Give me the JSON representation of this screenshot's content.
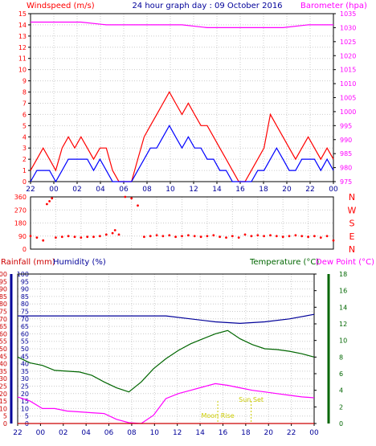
{
  "colors": {
    "wind_speed": "#ff0000",
    "wind_gust": "#ff0000",
    "wind_avg": "#0000ff",
    "barometer": "#ff00ff",
    "direction": "#ff0000",
    "rainfall": "#cc0000",
    "humidity": "#000099",
    "temperature": "#006600",
    "dew_point": "#ff00ff",
    "sun": "#cccc00",
    "grid": "#cccccc",
    "frame": "#000000"
  },
  "chart_data": [
    {
      "type": "line",
      "title": "24 hour graph day : 09 October 2016",
      "ylabel": "Windspeed (m/s)",
      "y2label": "Barometer (hpa)",
      "ylim": [
        0,
        15
      ],
      "y2lim": [
        975,
        1035
      ],
      "yticks": [
        0,
        1,
        2,
        3,
        4,
        5,
        6,
        7,
        8,
        9,
        10,
        11,
        12,
        13,
        14,
        15
      ],
      "y2ticks": [
        975,
        980,
        985,
        990,
        995,
        1000,
        1005,
        1010,
        1015,
        1020,
        1025,
        1030,
        1035
      ],
      "xlim": [
        0,
        24
      ],
      "xticks": [
        "22",
        "00",
        "02",
        "04",
        "06",
        "08",
        "10",
        "12",
        "14",
        "16",
        "18",
        "20",
        "22",
        "00"
      ],
      "grid": true,
      "series": [
        {
          "role": "gust",
          "x": [
            0,
            0.5,
            1,
            1.5,
            2,
            2.5,
            3,
            3.5,
            4,
            4.5,
            5,
            5.5,
            6,
            6.5,
            7,
            7.5,
            8,
            8.5,
            9,
            9.5,
            10,
            10.5,
            11,
            11.5,
            12,
            12.5,
            13,
            13.5,
            14,
            14.5,
            15,
            15.5,
            16,
            16.5,
            17,
            17.5,
            18,
            18.5,
            19,
            19.5,
            20,
            20.5,
            21,
            21.5,
            22,
            22.5,
            23,
            23.5,
            24
          ],
          "values": [
            1,
            2,
            3,
            2,
            1,
            3,
            4,
            3,
            4,
            3,
            2,
            3,
            3,
            1,
            0,
            0,
            0,
            2,
            4,
            5,
            6,
            7,
            8,
            7,
            6,
            7,
            6,
            5,
            5,
            4,
            3,
            2,
            1,
            0,
            0,
            1,
            2,
            3,
            6,
            5,
            4,
            3,
            2,
            3,
            4,
            3,
            2,
            3,
            2
          ]
        },
        {
          "role": "average",
          "x": [
            0,
            0.5,
            1,
            1.5,
            2,
            2.5,
            3,
            3.5,
            4,
            4.5,
            5,
            5.5,
            6,
            6.5,
            7,
            7.5,
            8,
            8.5,
            9,
            9.5,
            10,
            10.5,
            11,
            11.5,
            12,
            12.5,
            13,
            13.5,
            14,
            14.5,
            15,
            15.5,
            16,
            16.5,
            17,
            17.5,
            18,
            18.5,
            19,
            19.5,
            20,
            20.5,
            21,
            21.5,
            22,
            22.5,
            23,
            23.5,
            24
          ],
          "values": [
            0,
            1,
            1,
            1,
            0,
            1,
            2,
            2,
            2,
            2,
            1,
            2,
            1,
            0,
            0,
            0,
            0,
            1,
            2,
            3,
            3,
            4,
            5,
            4,
            3,
            4,
            3,
            3,
            2,
            2,
            1,
            1,
            0,
            0,
            0,
            0,
            1,
            1,
            2,
            3,
            2,
            1,
            1,
            2,
            2,
            2,
            1,
            2,
            1
          ]
        },
        {
          "role": "barometer",
          "axis": "y2",
          "x": [
            0,
            2,
            4,
            6,
            8,
            10,
            12,
            14,
            16,
            18,
            20,
            22,
            24
          ],
          "values": [
            1032,
            1032,
            1032,
            1031,
            1031,
            1031,
            1031,
            1030,
            1030,
            1030,
            1030,
            1031,
            1031
          ]
        }
      ]
    },
    {
      "type": "scatter",
      "ylabel_right": [
        "N",
        "W",
        "S",
        "E",
        "N"
      ],
      "ylim": [
        0,
        360
      ],
      "yticks": [
        0,
        90,
        180,
        270,
        360
      ],
      "xlim": [
        0,
        24
      ],
      "series": [
        {
          "role": "direction",
          "x": [
            0,
            0.5,
            1,
            1.3,
            1.5,
            1.7,
            2,
            2.5,
            3,
            3.5,
            4,
            4.5,
            5,
            5.5,
            6,
            6.5,
            6.7,
            7,
            7.5,
            8,
            8.5,
            9,
            9.5,
            10,
            10.5,
            11,
            11.5,
            12,
            12.5,
            13,
            13.5,
            14,
            14.5,
            15,
            15.5,
            16,
            16.5,
            17,
            17.5,
            18,
            18.5,
            19,
            19.5,
            20,
            20.5,
            21,
            21.5,
            22,
            22.5,
            23,
            23.5,
            24
          ],
          "values": [
            90,
            80,
            60,
            310,
            330,
            350,
            80,
            85,
            90,
            85,
            80,
            85,
            85,
            90,
            100,
            110,
            130,
            100,
            360,
            350,
            300,
            85,
            90,
            95,
            90,
            95,
            85,
            90,
            95,
            90,
            85,
            90,
            95,
            85,
            80,
            90,
            80,
            100,
            90,
            95,
            90,
            95,
            90,
            85,
            90,
            95,
            90,
            85,
            90,
            80,
            90,
            60
          ]
        }
      ]
    },
    {
      "type": "line",
      "ylabel": "Rainfall (mm)",
      "ylabel2": "Humidity (%)",
      "y2label": "Temperature (°C)",
      "y3label": "Dew Point (°C)",
      "ylim": [
        0,
        100
      ],
      "y2lim": [
        0,
        18
      ],
      "yticks": [
        0,
        5,
        10,
        15,
        20,
        25,
        30,
        35,
        40,
        45,
        50,
        55,
        60,
        65,
        70,
        75,
        80,
        85,
        90,
        95,
        100
      ],
      "y2ticks": [
        0,
        2,
        4,
        6,
        8,
        10,
        12,
        14,
        16,
        18
      ],
      "xlim": [
        0,
        24
      ],
      "xticks": [
        "22",
        "00",
        "02",
        "04",
        "06",
        "08",
        "10",
        "12",
        "14",
        "16",
        "18",
        "20",
        "22",
        "00"
      ],
      "grid": true,
      "annotations": [
        {
          "text": "Sun Set",
          "x": 18.9
        },
        {
          "text": "Moon Rise",
          "x": 16.2
        }
      ],
      "series": [
        {
          "role": "humidity",
          "x": [
            0,
            2,
            4,
            6,
            8,
            10,
            12,
            14,
            16,
            18,
            20,
            22,
            24
          ],
          "values": [
            72,
            72,
            72,
            72,
            72,
            72,
            72,
            70,
            68,
            67,
            68,
            70,
            73
          ]
        },
        {
          "role": "temperature",
          "axis": "y2",
          "x": [
            0,
            1,
            2,
            3,
            4,
            5,
            6,
            7,
            8,
            9,
            10,
            11,
            12,
            13,
            14,
            15,
            16,
            17,
            18,
            19,
            20,
            21,
            22,
            23,
            24
          ],
          "values": [
            8.0,
            7.3,
            7.0,
            6.4,
            6.3,
            6.2,
            5.8,
            5.0,
            4.3,
            3.8,
            5.0,
            6.6,
            7.8,
            8.8,
            9.6,
            10.2,
            10.8,
            11.2,
            10.2,
            9.5,
            9.0,
            8.9,
            8.7,
            8.4,
            8.0
          ]
        },
        {
          "role": "dew_point",
          "axis": "y2",
          "x": [
            0,
            1,
            2,
            3,
            4,
            5,
            6,
            7,
            8,
            9,
            10,
            11,
            12,
            13,
            14,
            15,
            16,
            17,
            18,
            19,
            20,
            21,
            22,
            23,
            24
          ],
          "values": [
            3.2,
            2.7,
            1.8,
            1.8,
            1.5,
            1.4,
            1.3,
            1.2,
            0.5,
            0.1,
            0.0,
            1.0,
            3.0,
            3.6,
            4.0,
            4.4,
            4.8,
            4.6,
            4.3,
            4.0,
            3.8,
            3.6,
            3.4,
            3.2,
            3.1
          ]
        },
        {
          "role": "rainfall",
          "x": [
            0,
            24
          ],
          "values": [
            0,
            0
          ]
        }
      ]
    }
  ]
}
